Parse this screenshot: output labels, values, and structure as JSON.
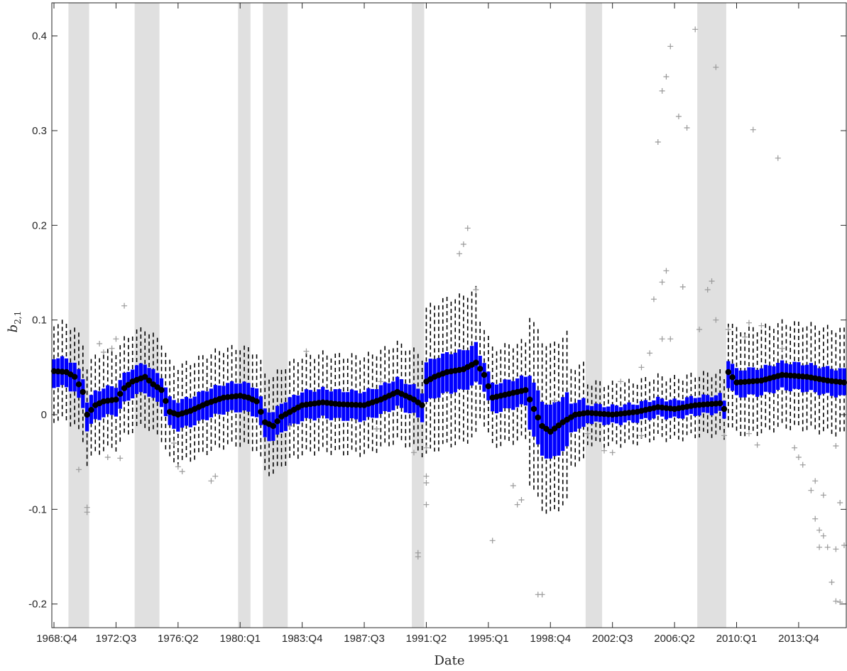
{
  "chart_data": {
    "type": "boxplot",
    "xlabel": "Date",
    "ylabel_base": "b",
    "ylabel_sub": "2,1",
    "ylim": [
      -0.225,
      0.435
    ],
    "yticks": [
      -0.2,
      -0.1,
      0,
      0.1,
      0.2,
      0.3,
      0.4
    ],
    "ytick_labels": [
      "-0.2",
      "-0.1",
      "0",
      "0.1",
      "0.2",
      "0.3",
      "0.4"
    ],
    "x_start": "1968:Q4",
    "x_end": "2016:Q3",
    "xticks": [
      "1968:Q4",
      "1972:Q3",
      "1976:Q2",
      "1980:Q1",
      "1983:Q4",
      "1987:Q3",
      "1991:Q2",
      "1995:Q1",
      "1998:Q4",
      "2002:Q3",
      "2006:Q2",
      "2010:Q1",
      "2013:Q4"
    ],
    "recessions": [
      [
        "1969:Q4",
        "1970:Q4"
      ],
      [
        "1973:Q4",
        "1975:Q1"
      ],
      [
        "1980:Q1",
        "1980:Q3"
      ],
      [
        "1981:Q3",
        "1982:Q4"
      ],
      [
        "1990:Q3",
        "1991:Q1"
      ],
      [
        "2001:Q1",
        "2001:Q4"
      ],
      [
        "2007:Q4",
        "2009:Q2"
      ]
    ],
    "median_anchors": [
      [
        "1968:Q4",
        0.046
      ],
      [
        "1969:Q3",
        0.045
      ],
      [
        "1970:Q1",
        0.04
      ],
      [
        "1970:Q3",
        0.024
      ],
      [
        "1970:Q4",
        0.0
      ],
      [
        "1971:Q2",
        0.01
      ],
      [
        "1971:Q4",
        0.014
      ],
      [
        "1972:Q3",
        0.016
      ],
      [
        "1973:Q1",
        0.028
      ],
      [
        "1973:Q3",
        0.035
      ],
      [
        "1974:Q2",
        0.04
      ],
      [
        "1974:Q4",
        0.032
      ],
      [
        "1975:Q2",
        0.026
      ],
      [
        "1975:Q4",
        0.003
      ],
      [
        "1976:Q2",
        0.0
      ],
      [
        "1977:Q1",
        0.004
      ],
      [
        "1978:Q1",
        0.012
      ],
      [
        "1979:Q1",
        0.018
      ],
      [
        "1980:Q1",
        0.02
      ],
      [
        "1980:Q3",
        0.018
      ],
      [
        "1981:Q1",
        0.014
      ],
      [
        "1981:Q3",
        -0.008
      ],
      [
        "1982:Q1",
        -0.012
      ],
      [
        "1982:Q3",
        -0.002
      ],
      [
        "1983:Q4",
        0.01
      ],
      [
        "1985:Q1",
        0.013
      ],
      [
        "1986:Q1",
        0.011
      ],
      [
        "1987:Q3",
        0.01
      ],
      [
        "1988:Q3",
        0.016
      ],
      [
        "1989:Q3",
        0.024
      ],
      [
        "1990:Q3",
        0.016
      ],
      [
        "1991:Q1",
        0.01
      ],
      [
        "1991:Q2",
        0.035
      ],
      [
        "1991:Q4",
        0.04
      ],
      [
        "1992:Q3",
        0.045
      ],
      [
        "1993:Q3",
        0.048
      ],
      [
        "1994:Q2",
        0.055
      ],
      [
        "1994:Q4",
        0.042
      ],
      [
        "1995:Q2",
        0.018
      ],
      [
        "1996:Q2",
        0.022
      ],
      [
        "1997:Q2",
        0.026
      ],
      [
        "1997:Q4",
        0.006
      ],
      [
        "1998:Q2",
        -0.012
      ],
      [
        "1998:Q4",
        -0.018
      ],
      [
        "1999:Q3",
        -0.008
      ],
      [
        "2000:Q2",
        0.0
      ],
      [
        "2001:Q1",
        0.002
      ],
      [
        "2002:Q3",
        0.0
      ],
      [
        "2004:Q1",
        0.003
      ],
      [
        "2005:Q2",
        0.008
      ],
      [
        "2006:Q2",
        0.006
      ],
      [
        "2007:Q3",
        0.01
      ],
      [
        "2009:Q1",
        0.012
      ],
      [
        "2009:Q2",
        0.006
      ],
      [
        "2009:Q3",
        0.045
      ],
      [
        "2010:Q1",
        0.034
      ],
      [
        "2011:Q3",
        0.036
      ],
      [
        "2012:Q4",
        0.042
      ],
      [
        "2014:Q2",
        0.04
      ],
      [
        "2015:Q3",
        0.036
      ],
      [
        "2016:Q3",
        0.034
      ]
    ],
    "outliers": [
      [
        "1970:Q4",
        -0.098
      ],
      [
        "1970:Q4",
        -0.103
      ],
      [
        "1970:Q2",
        -0.058
      ],
      [
        "1971:Q3",
        0.075
      ],
      [
        "1971:Q4",
        0.066
      ],
      [
        "1972:Q1",
        -0.045
      ],
      [
        "1972:Q4",
        -0.046
      ],
      [
        "1972:Q2",
        0.07
      ],
      [
        "1972:Q3",
        0.08
      ],
      [
        "1973:Q1",
        0.115
      ],
      [
        "1976:Q2",
        -0.055
      ],
      [
        "1976:Q3",
        -0.06
      ],
      [
        "1978:Q2",
        -0.07
      ],
      [
        "1978:Q3",
        -0.065
      ],
      [
        "1976:Q1",
        -0.03
      ],
      [
        "1983:Q1",
        -0.012
      ],
      [
        "1984:Q1",
        0.067
      ],
      [
        "1988:Q2",
        -0.015
      ],
      [
        "1988:Q3",
        0.035
      ],
      [
        "1990:Q3",
        -0.04
      ],
      [
        "1990:Q4",
        -0.146
      ],
      [
        "1990:Q4",
        -0.15
      ],
      [
        "1991:Q2",
        -0.065
      ],
      [
        "1991:Q2",
        -0.072
      ],
      [
        "1991:Q2",
        -0.095
      ],
      [
        "1991:Q2",
        -0.035
      ],
      [
        "1993:Q2",
        0.17
      ],
      [
        "1993:Q3",
        0.18
      ],
      [
        "1993:Q4",
        0.197
      ],
      [
        "1994:Q2",
        0.132
      ],
      [
        "1995:Q2",
        -0.133
      ],
      [
        "1996:Q3",
        -0.075
      ],
      [
        "1996:Q4",
        -0.095
      ],
      [
        "1997:Q1",
        -0.09
      ],
      [
        "1998:Q1",
        -0.19
      ],
      [
        "1998:Q2",
        -0.19
      ],
      [
        "1999:Q1",
        0.015
      ],
      [
        "2001:Q1",
        -0.02
      ],
      [
        "2002:Q1",
        -0.038
      ],
      [
        "2002:Q3",
        -0.04
      ],
      [
        "2003:Q1",
        0.035
      ],
      [
        "2004:Q2",
        -0.022
      ],
      [
        "2004:Q2",
        0.05
      ],
      [
        "2004:Q4",
        0.065
      ],
      [
        "2005:Q1",
        0.122
      ],
      [
        "2005:Q2",
        0.288
      ],
      [
        "2005:Q3",
        0.342
      ],
      [
        "2005:Q4",
        0.357
      ],
      [
        "2006:Q1",
        0.389
      ],
      [
        "2005:Q3",
        0.14
      ],
      [
        "2005:Q4",
        0.152
      ],
      [
        "2005:Q3",
        0.08
      ],
      [
        "2006:Q1",
        0.08
      ],
      [
        "2006:Q3",
        0.315
      ],
      [
        "2006:Q4",
        0.135
      ],
      [
        "2007:Q1",
        0.303
      ],
      [
        "2007:Q3",
        0.407
      ],
      [
        "2007:Q4",
        0.09
      ],
      [
        "2008:Q2",
        0.132
      ],
      [
        "2008:Q3",
        0.141
      ],
      [
        "2008:Q4",
        0.367
      ],
      [
        "2008:Q4",
        0.1
      ],
      [
        "2009:Q2",
        -0.022
      ],
      [
        "2009:Q3",
        0.09
      ],
      [
        "2010:Q3",
        0.082
      ],
      [
        "2010:Q4",
        0.097
      ],
      [
        "2010:Q4",
        -0.02
      ],
      [
        "2011:Q2",
        -0.032
      ],
      [
        "2011:Q1",
        0.301
      ],
      [
        "2011:Q3",
        0.094
      ],
      [
        "2012:Q3",
        0.271
      ],
      [
        "2012:Q4",
        0.07
      ],
      [
        "2013:Q3",
        -0.035
      ],
      [
        "2013:Q4",
        -0.045
      ],
      [
        "2014:Q1",
        -0.053
      ],
      [
        "2014:Q3",
        -0.08
      ],
      [
        "2014:Q4",
        -0.11
      ],
      [
        "2015:Q1",
        -0.14
      ],
      [
        "2014:Q4",
        -0.07
      ],
      [
        "2015:Q1",
        -0.122
      ],
      [
        "2015:Q2",
        -0.128
      ],
      [
        "2015:Q2",
        -0.085
      ],
      [
        "2015:Q3",
        -0.14
      ],
      [
        "2015:Q4",
        -0.177
      ],
      [
        "2016:Q1",
        -0.197
      ],
      [
        "2016:Q1",
        -0.142
      ],
      [
        "2016:Q2",
        -0.198
      ],
      [
        "2016:Q2",
        -0.093
      ],
      [
        "2016:Q3",
        -0.138
      ],
      [
        "2016:Q1",
        -0.033
      ]
    ]
  },
  "colors": {
    "box": "#0000ff",
    "median": "#000000",
    "whisker": "#000000",
    "outlier": "#999999",
    "recession": "#e0e0e0",
    "axis": "#262626"
  }
}
